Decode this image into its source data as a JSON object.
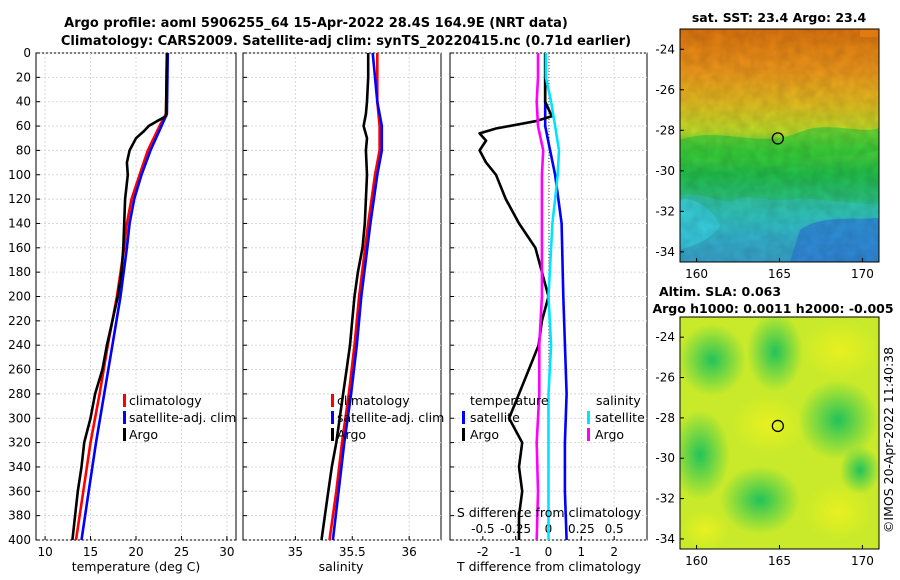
{
  "header": {
    "line1": "Argo profile: aoml 5906255_64 15-Apr-2022 28.4S 164.9E (NRT data)",
    "line2": "Climatology: CARS2009. Satellite-adj clim: synTS_20220415.nc (0.71d earlier)"
  },
  "credit": "©IMOS 20-Apr-2022 11:40:38",
  "colors": {
    "climatology": "#ff0000",
    "satellite": "#0000ff",
    "argo": "#000000",
    "sat_salinity": "#00e5ff",
    "argo_salinity": "#ff00ff"
  },
  "chart_data": [
    {
      "type": "line",
      "id": "temperature",
      "xlabel": "temperature (deg C)",
      "ylabel": "",
      "xlim": [
        9,
        31
      ],
      "ylim": [
        400,
        0
      ],
      "xticks": [
        10,
        15,
        20,
        25,
        30
      ],
      "yticks": [
        0,
        20,
        40,
        60,
        80,
        100,
        120,
        140,
        160,
        180,
        200,
        220,
        240,
        260,
        280,
        300,
        320,
        340,
        360,
        380,
        400
      ],
      "grid": true,
      "legend": {
        "placement": "bottom-right",
        "entries": [
          "climatology",
          "satellite-adj. clim",
          "Argo"
        ]
      },
      "series": [
        {
          "name": "climatology",
          "color": "#ff0000",
          "depth": [
            0,
            50,
            60,
            80,
            100,
            120,
            140,
            160,
            200,
            240,
            280,
            320,
            360,
            400
          ],
          "values": [
            23.4,
            23.3,
            22.6,
            21.3,
            20.4,
            19.5,
            19.0,
            18.7,
            17.9,
            16.9,
            16.0,
            15.0,
            14.2,
            13.4
          ]
        },
        {
          "name": "satellite-adj. clim",
          "color": "#0000ff",
          "depth": [
            0,
            50,
            60,
            80,
            100,
            120,
            140,
            160,
            200,
            240,
            280,
            320,
            360,
            400
          ],
          "values": [
            23.5,
            23.4,
            22.8,
            21.6,
            20.6,
            19.8,
            19.3,
            19.0,
            18.3,
            17.4,
            16.5,
            15.6,
            14.8,
            14.0
          ]
        },
        {
          "name": "Argo",
          "color": "#000000",
          "depth": [
            0,
            52,
            56,
            60,
            64,
            70,
            80,
            90,
            100,
            120,
            140,
            160,
            180,
            200,
            220,
            240,
            260,
            280,
            300,
            320,
            340,
            360,
            380,
            400
          ],
          "values": [
            23.4,
            23.3,
            22.3,
            21.4,
            20.9,
            20.0,
            19.3,
            19.0,
            19.1,
            18.8,
            18.7,
            18.6,
            18.4,
            18.0,
            17.4,
            16.8,
            16.3,
            15.5,
            15.0,
            14.3,
            14.0,
            13.6,
            13.3,
            13.0
          ]
        }
      ]
    },
    {
      "type": "line",
      "id": "salinity",
      "xlabel": "salinity",
      "ylabel": "",
      "xlim": [
        34.54,
        36.28
      ],
      "ylim": [
        400,
        0
      ],
      "xticks": [
        35,
        35.5,
        36
      ],
      "yticks": [
        0,
        20,
        40,
        60,
        80,
        100,
        120,
        140,
        160,
        180,
        200,
        220,
        240,
        260,
        280,
        300,
        320,
        340,
        360,
        380,
        400
      ],
      "grid": true,
      "legend": {
        "placement": "bottom-right",
        "entries": [
          "climatology",
          "satellite-adj. clim",
          "Argo"
        ]
      },
      "series": [
        {
          "name": "climatology",
          "color": "#ff0000",
          "depth": [
            0,
            20,
            40,
            60,
            80,
            100,
            140,
            200,
            240,
            280,
            320,
            360,
            400
          ],
          "values": [
            35.72,
            35.72,
            35.72,
            35.74,
            35.74,
            35.7,
            35.64,
            35.56,
            35.52,
            35.47,
            35.41,
            35.36,
            35.3
          ]
        },
        {
          "name": "satellite-adj. clim",
          "color": "#0000ff",
          "depth": [
            0,
            20,
            40,
            60,
            80,
            100,
            140,
            200,
            240,
            280,
            320,
            360,
            400
          ],
          "values": [
            35.68,
            35.7,
            35.72,
            35.76,
            35.76,
            35.72,
            35.66,
            35.58,
            35.54,
            35.49,
            35.43,
            35.38,
            35.33
          ]
        },
        {
          "name": "Argo",
          "color": "#000000",
          "depth": [
            0,
            20,
            40,
            50,
            60,
            70,
            80,
            100,
            120,
            140,
            160,
            180,
            200,
            220,
            240,
            260,
            280,
            300,
            320,
            340,
            360,
            380,
            400
          ],
          "values": [
            35.64,
            35.64,
            35.63,
            35.62,
            35.6,
            35.63,
            35.62,
            35.63,
            35.62,
            35.61,
            35.59,
            35.55,
            35.52,
            35.5,
            35.48,
            35.45,
            35.42,
            35.39,
            35.36,
            35.32,
            35.29,
            35.26,
            35.23
          ]
        }
      ]
    },
    {
      "type": "line",
      "id": "differences",
      "xlabel": "T difference from climatology",
      "xlabel_top": "S difference from climatology",
      "xlim": [
        -3,
        3
      ],
      "ylim": [
        400,
        0
      ],
      "xticks": [
        -2,
        -1,
        0,
        1,
        2
      ],
      "s_xticks": [
        -0.5,
        -0.25,
        0,
        0.25,
        0.5
      ],
      "yticks": [
        0,
        20,
        40,
        60,
        80,
        100,
        120,
        140,
        160,
        180,
        200,
        220,
        240,
        260,
        280,
        300,
        320,
        340,
        360,
        380,
        400
      ],
      "grid": true,
      "legend_temperature": {
        "title": "temperature",
        "entries": [
          "satellite",
          "Argo"
        ]
      },
      "legend_salinity": {
        "title": "salinity",
        "entries": [
          "satellite",
          "Argo"
        ]
      },
      "series": [
        {
          "name": "T satellite",
          "color": "#0000ff",
          "depth": [
            0,
            20,
            40,
            60,
            80,
            100,
            140,
            200,
            280,
            320,
            360,
            400
          ],
          "values": [
            -0.1,
            -0.1,
            -0.1,
            -0.1,
            0.05,
            0.2,
            0.4,
            0.45,
            0.55,
            0.5,
            0.5,
            0.55
          ]
        },
        {
          "name": "T Argo",
          "color": "#000000",
          "depth": [
            0,
            40,
            52,
            56,
            62,
            66,
            72,
            76,
            80,
            90,
            100,
            120,
            140,
            160,
            180,
            200,
            220,
            240,
            260,
            280,
            300,
            320,
            340,
            360,
            380,
            400
          ],
          "values": [
            -0.1,
            -0.1,
            0.1,
            -0.4,
            -1.6,
            -2.1,
            -1.9,
            -2.0,
            -2.1,
            -1.9,
            -1.6,
            -1.3,
            -0.9,
            -0.4,
            -0.2,
            0.0,
            -0.2,
            -0.3,
            -0.6,
            -0.9,
            -1.2,
            -0.8,
            -0.9,
            -0.8,
            -0.9,
            -0.9
          ]
        },
        {
          "name": "S satellite",
          "color": "#00e5ff",
          "depth": [
            0,
            20,
            40,
            60,
            80,
            100,
            120,
            140,
            160,
            180,
            200,
            240,
            280,
            320,
            360,
            400
          ],
          "values": [
            -0.02,
            -0.02,
            0.02,
            0.05,
            0.08,
            0.07,
            0.05,
            0.03,
            0.02,
            0.01,
            0.0,
            0.02,
            0.0,
            0.0,
            0.0,
            0.0
          ]
        },
        {
          "name": "S Argo",
          "color": "#ff00ff",
          "depth": [
            0,
            20,
            40,
            60,
            80,
            100,
            140,
            200,
            240,
            280,
            320,
            360,
            400
          ],
          "values": [
            -0.08,
            -0.08,
            -0.09,
            -0.08,
            -0.04,
            -0.05,
            -0.05,
            -0.05,
            -0.07,
            -0.07,
            -0.09,
            -0.08,
            -0.09
          ]
        }
      ]
    },
    {
      "type": "heatmap",
      "id": "sst-map",
      "title": "sat. SST: 23.4 Argo: 23.4",
      "xlim": [
        159,
        171
      ],
      "ylim": [
        -34.5,
        -23
      ],
      "xticks": [
        160,
        165,
        170
      ],
      "yticks": [
        -24,
        -26,
        -28,
        -30,
        -32,
        -34
      ],
      "marker": {
        "lon": 164.9,
        "lat": -28.4
      }
    },
    {
      "type": "heatmap",
      "id": "sla-map",
      "title": "Altim. SLA: 0.063",
      "subtitle": "Argo h1000: 0.0011 h2000: -0.005",
      "xlim": [
        159,
        171
      ],
      "ylim": [
        -34.5,
        -23
      ],
      "xticks": [
        160,
        165,
        170
      ],
      "yticks": [
        -24,
        -26,
        -28,
        -30,
        -32,
        -34
      ],
      "marker": {
        "lon": 164.9,
        "lat": -28.4
      }
    }
  ]
}
